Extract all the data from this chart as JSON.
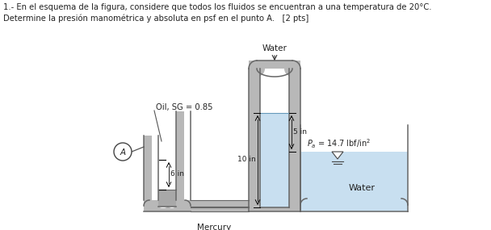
{
  "title_line1": "1.- En el esquema de la figura, considere que todos los fluidos se encuentran a una temperatura de 20°C.",
  "title_line2": "Determine la presión manométrica y absoluta en psf en el punto A.   [2 pts]",
  "label_water_top": "Water",
  "label_oil": "Oil, SG = 0.85",
  "label_mercury": "Mercury",
  "label_water_right": "Water",
  "label_pa": "$P_a$ = 14.7 lbf/in$^2$",
  "label_5in": "5 in",
  "label_10in": "10 in",
  "label_6in": "6 in",
  "label_A": "A",
  "bg_color": "#ffffff",
  "tube_gray": "#b8b8b8",
  "tube_outline": "#666666",
  "water_color": "#c8dff0",
  "text_color": "#222222"
}
